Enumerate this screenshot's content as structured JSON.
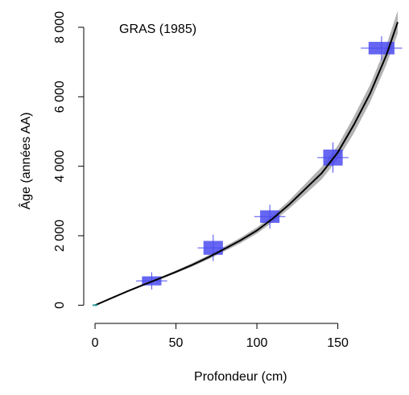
{
  "chart_data": {
    "type": "line",
    "title": "",
    "annotation": "GRAS (1985)",
    "xlabel": "Profondeur (cm)",
    "ylabel": "Âge (années AA)",
    "xlim": [
      -5,
      190
    ],
    "ylim": [
      -200,
      8600
    ],
    "x_ticks": [
      0,
      50,
      100,
      150
    ],
    "x_tick_labels": [
      "0",
      "50",
      "100",
      "150"
    ],
    "y_ticks": [
      0,
      2000,
      4000,
      6000,
      8000
    ],
    "y_tick_labels": [
      "0",
      "2 000",
      "4 000",
      "6 000",
      "8 000"
    ],
    "grid": false,
    "legend": "none",
    "series": [
      {
        "kind": "age-depth-model",
        "x": [
          0,
          10,
          20,
          30,
          40,
          50,
          60,
          70,
          80,
          90,
          100,
          110,
          120,
          130,
          140,
          150,
          160,
          170,
          180,
          187
        ],
        "y": [
          0,
          200,
          400,
          590,
          770,
          960,
          1160,
          1380,
          1620,
          1870,
          2150,
          2500,
          2900,
          3350,
          3800,
          4400,
          5200,
          6100,
          7200,
          8150
        ],
        "ci_low": [
          0,
          190,
          380,
          560,
          740,
          920,
          1110,
          1320,
          1550,
          1790,
          2060,
          2400,
          2780,
          3200,
          3620,
          4200,
          4960,
          5850,
          6920,
          7820
        ],
        "ci_high": [
          0,
          210,
          420,
          620,
          800,
          1000,
          1210,
          1440,
          1690,
          1950,
          2240,
          2600,
          3020,
          3500,
          3980,
          4600,
          5440,
          6350,
          7480,
          8480
        ]
      },
      {
        "kind": "dated-samples",
        "depth": [
          35,
          73,
          108,
          147,
          177
        ],
        "age": [
          700,
          1650,
          2550,
          4250,
          7400
        ],
        "depth_err": [
          6,
          6,
          6,
          6,
          8
        ],
        "age_err": [
          130,
          200,
          180,
          230,
          180
        ]
      }
    ],
    "colors": {
      "model_line": "#000000",
      "ci_band": "#9a9a9a",
      "samples": "#4b4bf0"
    }
  }
}
